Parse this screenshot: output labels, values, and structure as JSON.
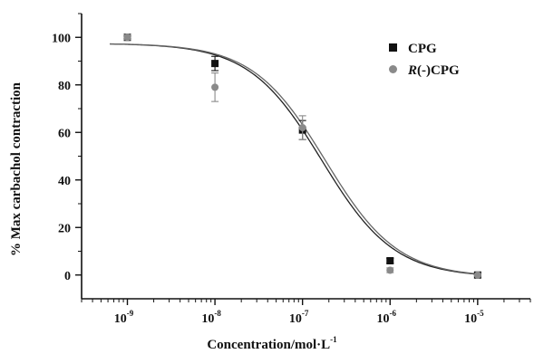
{
  "chart_data": {
    "type": "scatter",
    "title": "",
    "xlabel": "Concentration/mol·L",
    "xlabel_superscript": "-1",
    "ylabel": "% Max carbachol contraction",
    "x_scale": "log",
    "xlim": [
      3e-10,
      4e-05
    ],
    "ylim": [
      -10,
      110
    ],
    "x_ticks": [
      1e-09,
      1e-08,
      1e-07,
      1e-06,
      1e-05
    ],
    "x_tick_labels": [
      {
        "base": "10",
        "exp": "-9"
      },
      {
        "base": "10",
        "exp": "-8"
      },
      {
        "base": "10",
        "exp": "-7"
      },
      {
        "base": "10",
        "exp": "-6"
      },
      {
        "base": "10",
        "exp": "-5"
      }
    ],
    "y_ticks": [
      0,
      20,
      40,
      60,
      80,
      100
    ],
    "y_tick_labels": [
      "0",
      "20",
      "40",
      "60",
      "80",
      "100"
    ],
    "grid": false,
    "legend_position": "top-right",
    "series": [
      {
        "name": "CPG",
        "name_parts": [
          {
            "text": "CPG",
            "italic": false
          }
        ],
        "marker": "square",
        "color": "#111111",
        "x": [
          1e-09,
          1e-08,
          1e-07,
          1e-06,
          1e-05
        ],
        "y": [
          100,
          89,
          61,
          6,
          0
        ],
        "err": [
          1,
          3,
          4,
          1,
          0.5
        ],
        "fit": {
          "top": 97.5,
          "bottom": -1,
          "log_ic50": -6.78,
          "hill": 1.05
        }
      },
      {
        "name": "R(-)CPG",
        "name_parts": [
          {
            "text": "R",
            "italic": true
          },
          {
            "text": "(-)CPG",
            "italic": false
          }
        ],
        "marker": "circle",
        "color": "#8a8a8a",
        "x": [
          1e-09,
          1e-08,
          1e-07,
          1e-06,
          1e-05
        ],
        "y": [
          100,
          79,
          62,
          2,
          0
        ],
        "err": [
          1,
          6,
          5,
          1,
          0.5
        ],
        "fit": {
          "top": 97.5,
          "bottom": -1,
          "log_ic50": -6.74,
          "hill": 1.05
        }
      }
    ]
  }
}
